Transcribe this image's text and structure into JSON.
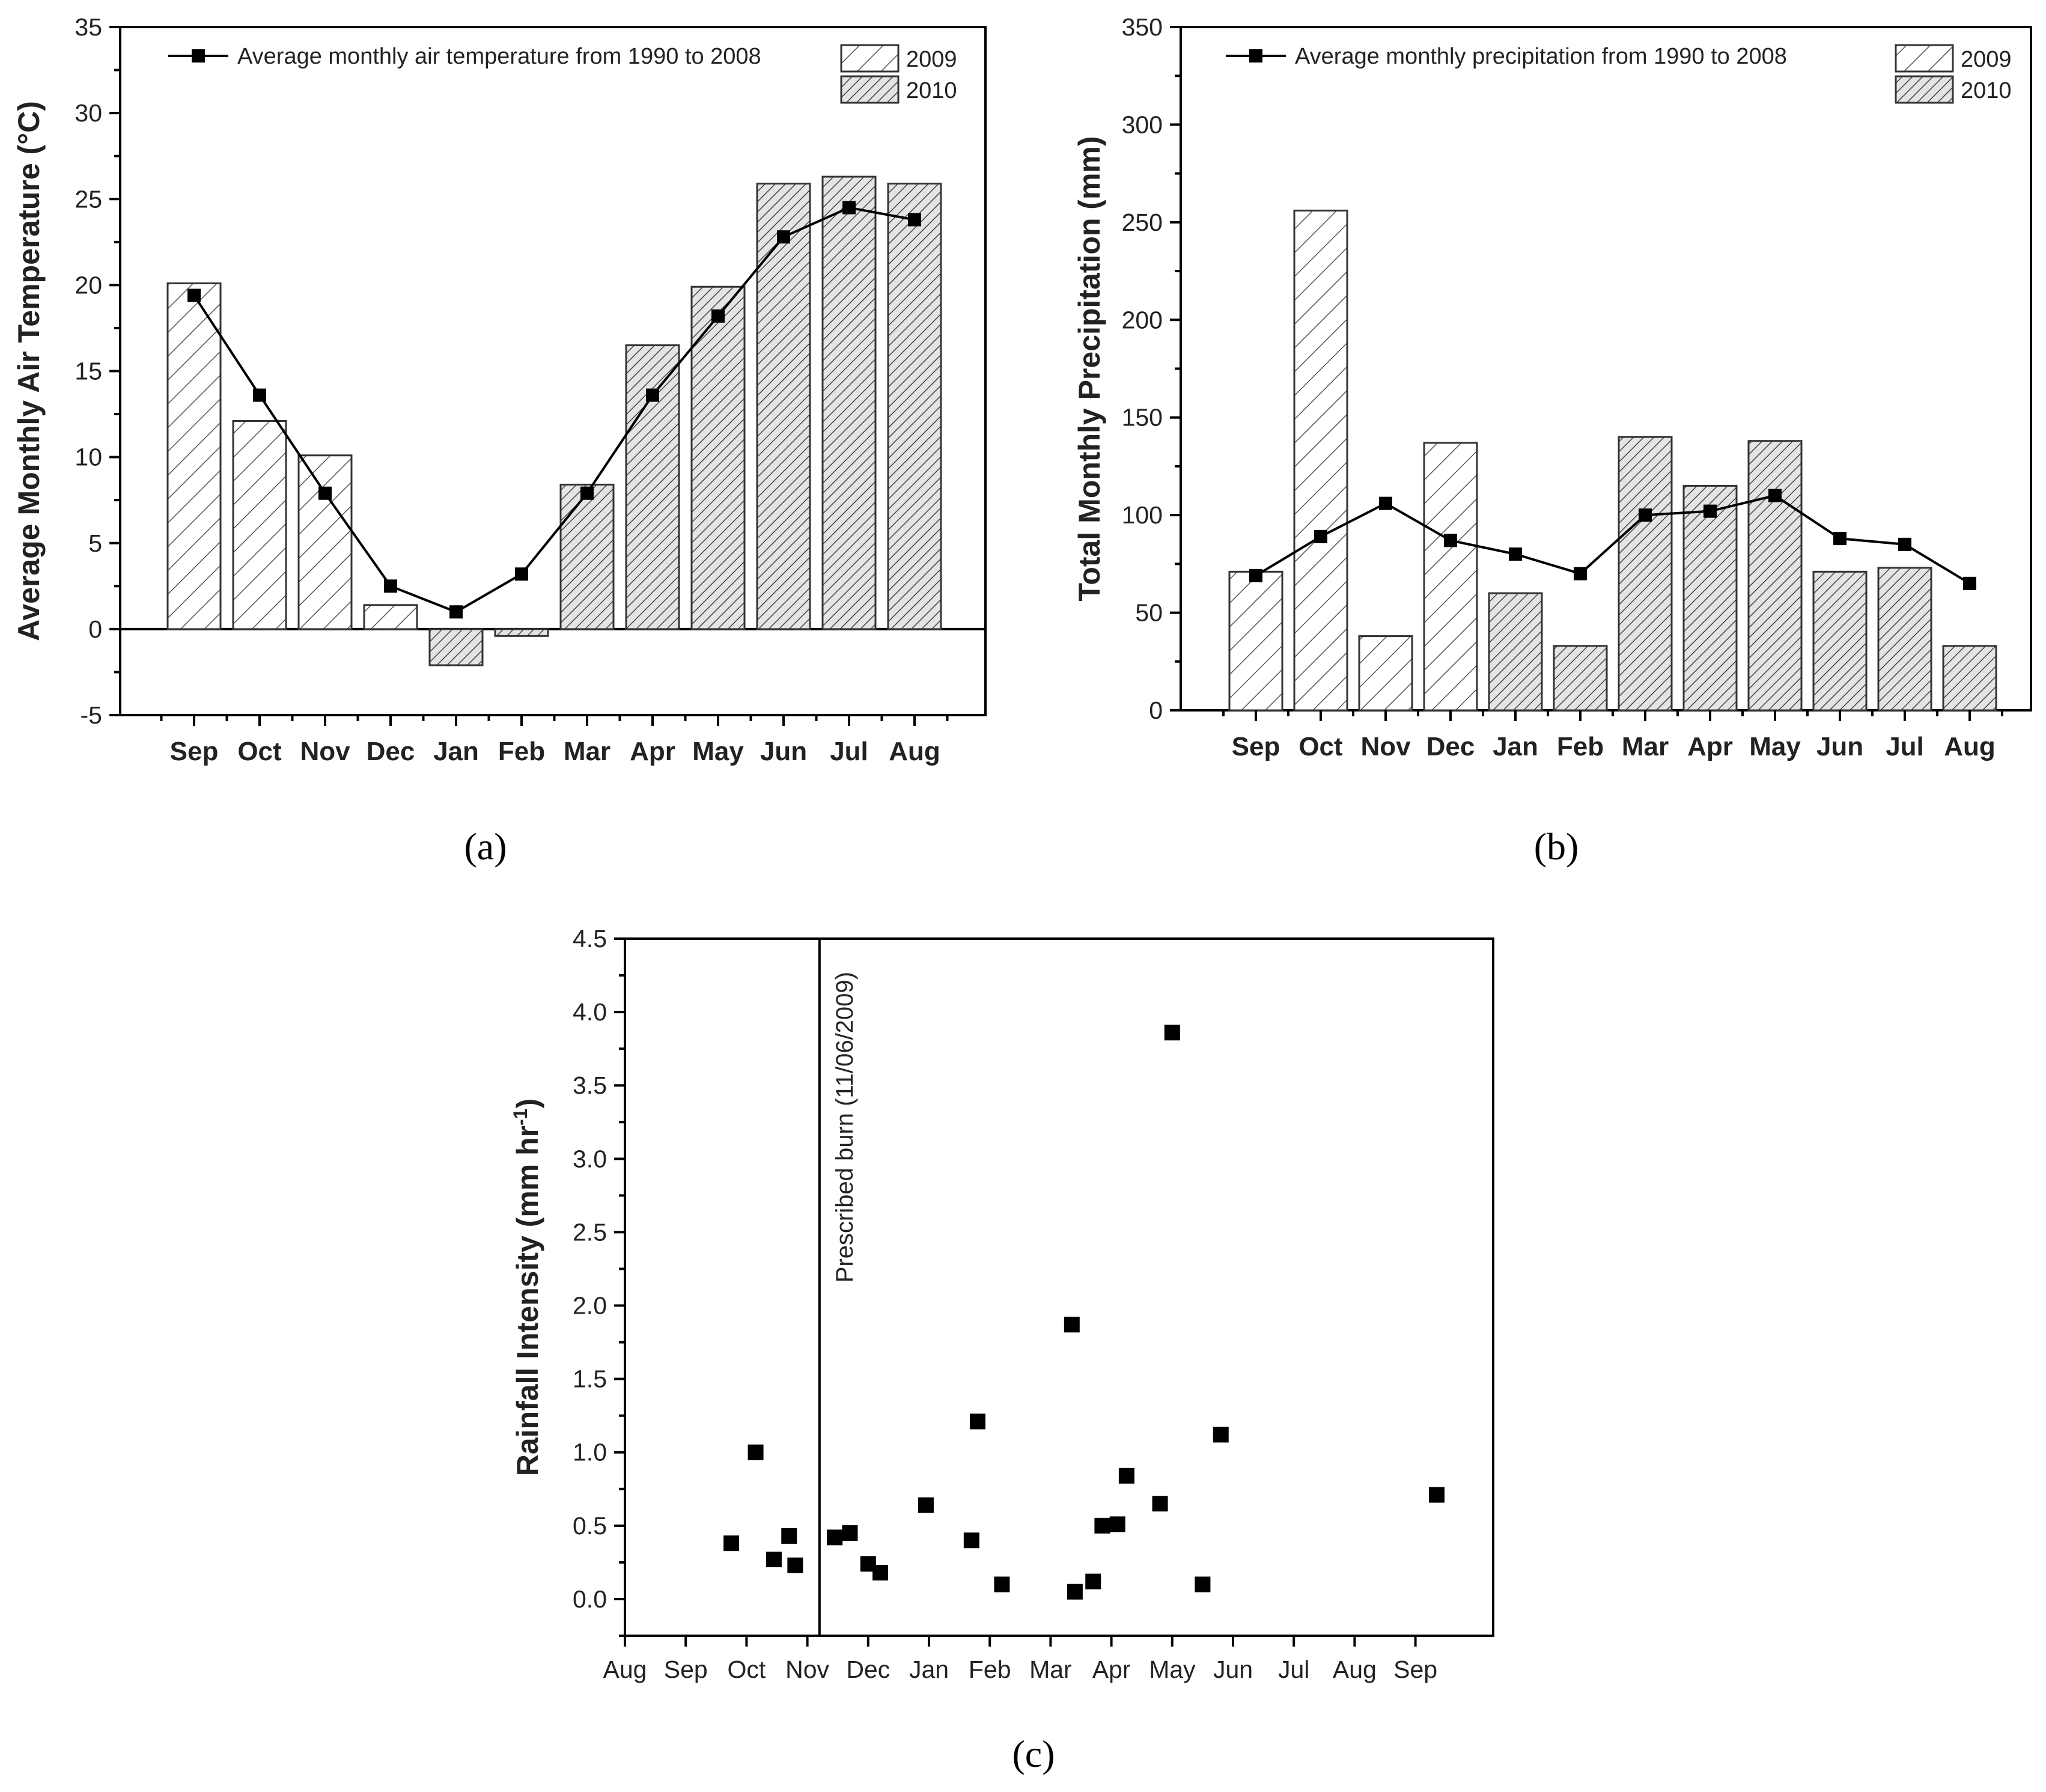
{
  "chart_data": [
    {
      "id": "a",
      "type": "bar",
      "panel_label": "(a)",
      "ylabel": "Average Monthly Air Temperature (°C)",
      "xlabel": "",
      "ylim": [
        -5,
        35
      ],
      "yticks": [
        -5,
        0,
        5,
        10,
        15,
        20,
        25,
        30,
        35
      ],
      "categories": [
        "Sep",
        "Oct",
        "Nov",
        "Dec",
        "Jan",
        "Feb",
        "Mar",
        "Apr",
        "May",
        "Jun",
        "Jul",
        "Aug"
      ],
      "bar_years": [
        "2009",
        "2009",
        "2009",
        "2009",
        "2010",
        "2010",
        "2010",
        "2010",
        "2010",
        "2010",
        "2010",
        "2010"
      ],
      "bars": [
        20.1,
        12.1,
        10.1,
        1.4,
        -2.1,
        -0.4,
        8.4,
        16.5,
        19.9,
        25.9,
        26.3,
        25.9
      ],
      "line": {
        "name": "Average monthly air temperature from 1990 to 2008",
        "values": [
          19.4,
          13.6,
          7.9,
          2.5,
          1.0,
          3.2,
          7.9,
          13.6,
          18.2,
          22.8,
          24.5,
          23.8
        ]
      },
      "legend": [
        {
          "label": "2009",
          "pattern": "sparse-hatch"
        },
        {
          "label": "2010",
          "pattern": "dense-hatch"
        }
      ]
    },
    {
      "id": "b",
      "type": "bar",
      "panel_label": "(b)",
      "ylabel": "Total Monthly Precipitation (mm)",
      "xlabel": "",
      "ylim": [
        0,
        350
      ],
      "yticks": [
        0,
        50,
        100,
        150,
        200,
        250,
        300,
        350
      ],
      "categories": [
        "Sep",
        "Oct",
        "Nov",
        "Dec",
        "Jan",
        "Feb",
        "Mar",
        "Apr",
        "May",
        "Jun",
        "Jul",
        "Aug"
      ],
      "bar_years": [
        "2009",
        "2009",
        "2009",
        "2009",
        "2010",
        "2010",
        "2010",
        "2010",
        "2010",
        "2010",
        "2010",
        "2010"
      ],
      "bars": [
        71,
        256,
        38,
        137,
        60,
        33,
        140,
        115,
        138,
        71,
        73,
        33
      ],
      "line": {
        "name": "Average monthly precipitation from 1990 to 2008",
        "values": [
          69,
          89,
          106,
          87,
          80,
          70,
          100,
          102,
          110,
          88,
          85,
          65
        ]
      },
      "legend": [
        {
          "label": "2009",
          "pattern": "sparse-hatch"
        },
        {
          "label": "2010",
          "pattern": "dense-hatch"
        }
      ]
    },
    {
      "id": "c",
      "type": "scatter",
      "panel_label": "(c)",
      "ylabel": "Rainfall Intensity (mm hr",
      "ylabel_superscript": "-1",
      "ylabel_close": ")",
      "xlabel": "",
      "ylim": [
        -0.25,
        4.5
      ],
      "yticks": [
        "0.0",
        "0.5",
        "1.0",
        "1.5",
        "2.0",
        "2.5",
        "3.0",
        "3.5",
        "4.0",
        "4.5"
      ],
      "xlim": [
        0,
        14.3
      ],
      "xticks": [
        "Aug",
        "Sep",
        "Oct",
        "Nov",
        "Dec",
        "Jan",
        "Feb",
        "Mar",
        "Apr",
        "May",
        "Jun",
        "Jul",
        "Aug",
        "Sep"
      ],
      "annotation": {
        "label": "Prescribed burn (11/06/2009)",
        "x": 3.2
      },
      "points": [
        {
          "x": 1.75,
          "y": 0.38
        },
        {
          "x": 2.15,
          "y": 1.0
        },
        {
          "x": 2.45,
          "y": 0.27
        },
        {
          "x": 2.7,
          "y": 0.43
        },
        {
          "x": 2.8,
          "y": 0.23
        },
        {
          "x": 3.45,
          "y": 0.42
        },
        {
          "x": 3.7,
          "y": 0.45
        },
        {
          "x": 4.0,
          "y": 0.24
        },
        {
          "x": 4.2,
          "y": 0.18
        },
        {
          "x": 4.95,
          "y": 0.64
        },
        {
          "x": 5.7,
          "y": 0.4
        },
        {
          "x": 5.8,
          "y": 1.21
        },
        {
          "x": 6.2,
          "y": 0.1
        },
        {
          "x": 7.35,
          "y": 1.87
        },
        {
          "x": 7.4,
          "y": 0.05
        },
        {
          "x": 7.7,
          "y": 0.12
        },
        {
          "x": 7.85,
          "y": 0.5
        },
        {
          "x": 8.1,
          "y": 0.51
        },
        {
          "x": 8.25,
          "y": 0.84
        },
        {
          "x": 8.8,
          "y": 0.65
        },
        {
          "x": 9.0,
          "y": 3.86
        },
        {
          "x": 9.5,
          "y": 0.1
        },
        {
          "x": 9.8,
          "y": 1.12
        },
        {
          "x": 13.35,
          "y": 0.71
        }
      ]
    }
  ]
}
